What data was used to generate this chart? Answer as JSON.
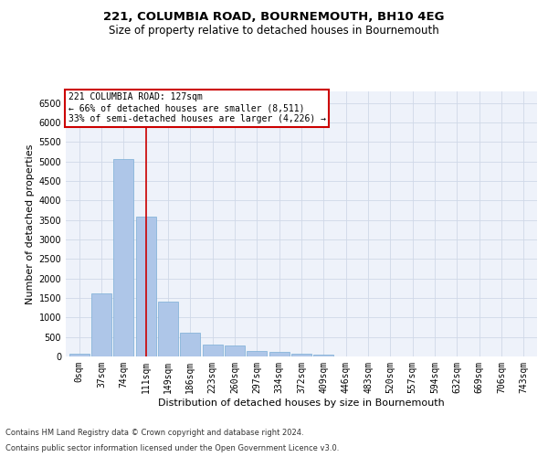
{
  "title": "221, COLUMBIA ROAD, BOURNEMOUTH, BH10 4EG",
  "subtitle": "Size of property relative to detached houses in Bournemouth",
  "xlabel": "Distribution of detached houses by size in Bournemouth",
  "ylabel": "Number of detached properties",
  "footnote1": "Contains HM Land Registry data © Crown copyright and database right 2024.",
  "footnote2": "Contains public sector information licensed under the Open Government Licence v3.0.",
  "bar_labels": [
    "0sqm",
    "37sqm",
    "74sqm",
    "111sqm",
    "149sqm",
    "186sqm",
    "223sqm",
    "260sqm",
    "297sqm",
    "334sqm",
    "372sqm",
    "409sqm",
    "446sqm",
    "483sqm",
    "520sqm",
    "557sqm",
    "594sqm",
    "632sqm",
    "669sqm",
    "706sqm",
    "743sqm"
  ],
  "bar_values": [
    60,
    1620,
    5060,
    3580,
    1400,
    610,
    300,
    290,
    130,
    110,
    75,
    40,
    0,
    0,
    0,
    0,
    0,
    0,
    0,
    0,
    0
  ],
  "bar_color": "#aec6e8",
  "bar_edge_color": "#7aaed6",
  "property_label": "221 COLUMBIA ROAD: 127sqm",
  "pct_smaller": 66,
  "n_smaller": 8511,
  "pct_larger_semi": 33,
  "n_larger_semi": 4226,
  "vline_x": 3.0,
  "ylim": [
    0,
    6800
  ],
  "yticks": [
    0,
    500,
    1000,
    1500,
    2000,
    2500,
    3000,
    3500,
    4000,
    4500,
    5000,
    5500,
    6000,
    6500
  ],
  "grid_color": "#d0d8e8",
  "background_color": "#eef2fa",
  "annotation_box_color": "#ffffff",
  "annotation_box_edge": "#cc0000",
  "vline_color": "#cc0000",
  "title_fontsize": 9.5,
  "subtitle_fontsize": 8.5,
  "xlabel_fontsize": 8,
  "ylabel_fontsize": 8,
  "tick_fontsize": 7,
  "annot_fontsize": 7,
  "footnote_fontsize": 6
}
